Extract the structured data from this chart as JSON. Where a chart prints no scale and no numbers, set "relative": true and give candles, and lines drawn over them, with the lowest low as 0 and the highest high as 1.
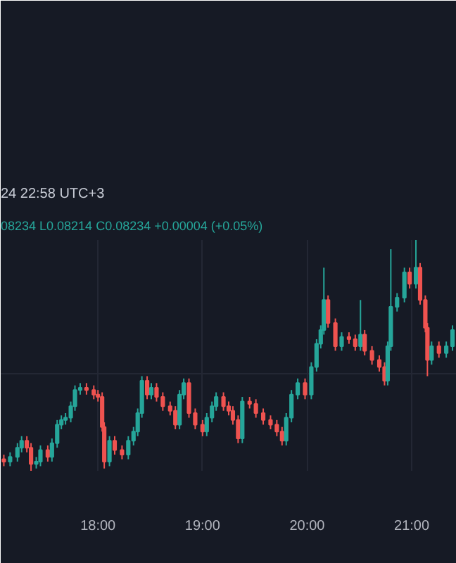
{
  "chart_data": {
    "type": "candlestick",
    "title": "24 22:58 UTC+3",
    "subtitle": "08234  L0.08214  C0.08234  +0.00004 (+0.05%)",
    "relative": true,
    "grid": true,
    "xlim": [
      17.07,
      21.43
    ],
    "xticks": [
      {
        "value": 18,
        "label": "18:00"
      },
      {
        "value": 19,
        "label": "19:00"
      },
      {
        "value": 20,
        "label": "20:00"
      },
      {
        "value": 21,
        "label": "21:00"
      }
    ],
    "x": [
      17.1,
      17.16,
      17.23,
      17.27,
      17.32,
      17.36,
      17.41,
      17.45,
      17.52,
      17.56,
      17.61,
      17.65,
      17.69,
      17.74,
      17.78,
      17.83,
      17.89,
      17.96,
      18.0,
      18.04,
      18.06,
      18.11,
      18.16,
      18.23,
      18.29,
      18.34,
      18.38,
      18.42,
      18.47,
      18.51,
      18.56,
      18.62,
      18.69,
      18.74,
      18.78,
      18.82,
      18.87,
      18.93,
      19.0,
      19.04,
      19.09,
      19.13,
      19.2,
      19.25,
      19.29,
      19.34,
      19.38,
      19.45,
      19.51,
      19.58,
      19.65,
      19.71,
      19.76,
      19.8,
      19.85,
      19.91,
      19.98,
      20.04,
      20.09,
      20.13,
      20.16,
      20.2,
      20.27,
      20.33,
      20.4,
      20.46,
      20.51,
      20.55,
      20.62,
      20.69,
      20.74,
      20.77,
      20.8,
      20.86,
      20.93,
      20.98,
      21.04,
      21.08,
      21.13,
      21.15,
      21.19,
      21.26,
      21.33,
      21.39
    ],
    "ohlc": [
      [
        0.05,
        0.07,
        0.02,
        0.04
      ],
      [
        0.04,
        0.08,
        0.02,
        0.06
      ],
      [
        0.06,
        0.12,
        0.04,
        0.1
      ],
      [
        0.1,
        0.15,
        0.08,
        0.13
      ],
      [
        0.13,
        0.15,
        0.08,
        0.1
      ],
      [
        0.1,
        0.12,
        0.0,
        0.03
      ],
      [
        0.03,
        0.06,
        0.01,
        0.04
      ],
      [
        0.04,
        0.11,
        0.02,
        0.09
      ],
      [
        0.09,
        0.11,
        0.04,
        0.06
      ],
      [
        0.06,
        0.14,
        0.04,
        0.12
      ],
      [
        0.12,
        0.22,
        0.1,
        0.2
      ],
      [
        0.2,
        0.24,
        0.18,
        0.22
      ],
      [
        0.22,
        0.25,
        0.2,
        0.23
      ],
      [
        0.23,
        0.3,
        0.21,
        0.28
      ],
      [
        0.28,
        0.37,
        0.26,
        0.35
      ],
      [
        0.35,
        0.38,
        0.33,
        0.36
      ],
      [
        0.36,
        0.38,
        0.33,
        0.35
      ],
      [
        0.35,
        0.37,
        0.31,
        0.33
      ],
      [
        0.33,
        0.35,
        0.3,
        0.32
      ],
      [
        0.32,
        0.34,
        0.17,
        0.19
      ],
      [
        0.19,
        0.21,
        0.01,
        0.04
      ],
      [
        0.04,
        0.15,
        0.02,
        0.13
      ],
      [
        0.13,
        0.15,
        0.07,
        0.09
      ],
      [
        0.09,
        0.11,
        0.05,
        0.07
      ],
      [
        0.07,
        0.15,
        0.05,
        0.13
      ],
      [
        0.13,
        0.19,
        0.11,
        0.17
      ],
      [
        0.17,
        0.27,
        0.15,
        0.25
      ],
      [
        0.25,
        0.41,
        0.23,
        0.39
      ],
      [
        0.39,
        0.41,
        0.31,
        0.33
      ],
      [
        0.33,
        0.38,
        0.31,
        0.36
      ],
      [
        0.36,
        0.38,
        0.3,
        0.32
      ],
      [
        0.32,
        0.34,
        0.26,
        0.28
      ],
      [
        0.28,
        0.3,
        0.24,
        0.26
      ],
      [
        0.26,
        0.28,
        0.18,
        0.2
      ],
      [
        0.2,
        0.35,
        0.18,
        0.33
      ],
      [
        0.33,
        0.4,
        0.31,
        0.38
      ],
      [
        0.38,
        0.4,
        0.23,
        0.25
      ],
      [
        0.25,
        0.27,
        0.18,
        0.2
      ],
      [
        0.2,
        0.22,
        0.15,
        0.17
      ],
      [
        0.17,
        0.25,
        0.15,
        0.23
      ],
      [
        0.23,
        0.3,
        0.21,
        0.28
      ],
      [
        0.28,
        0.34,
        0.26,
        0.32
      ],
      [
        0.32,
        0.34,
        0.26,
        0.28
      ],
      [
        0.28,
        0.3,
        0.24,
        0.26
      ],
      [
        0.26,
        0.28,
        0.2,
        0.22
      ],
      [
        0.22,
        0.24,
        0.12,
        0.14
      ],
      [
        0.14,
        0.32,
        0.12,
        0.3
      ],
      [
        0.3,
        0.32,
        0.27,
        0.29
      ],
      [
        0.29,
        0.31,
        0.23,
        0.25
      ],
      [
        0.25,
        0.27,
        0.2,
        0.22
      ],
      [
        0.22,
        0.24,
        0.18,
        0.2
      ],
      [
        0.2,
        0.22,
        0.15,
        0.17
      ],
      [
        0.17,
        0.19,
        0.11,
        0.13
      ],
      [
        0.13,
        0.25,
        0.11,
        0.23
      ],
      [
        0.23,
        0.35,
        0.21,
        0.33
      ],
      [
        0.33,
        0.4,
        0.31,
        0.38
      ],
      [
        0.38,
        0.4,
        0.31,
        0.33
      ],
      [
        0.33,
        0.47,
        0.31,
        0.45
      ],
      [
        0.45,
        0.57,
        0.43,
        0.55
      ],
      [
        0.55,
        0.63,
        0.53,
        0.61
      ],
      [
        0.61,
        0.88,
        0.59,
        0.74
      ],
      [
        0.74,
        0.76,
        0.62,
        0.64
      ],
      [
        0.64,
        0.66,
        0.52,
        0.54
      ],
      [
        0.54,
        0.6,
        0.52,
        0.58
      ],
      [
        0.58,
        0.6,
        0.55,
        0.57
      ],
      [
        0.57,
        0.59,
        0.52,
        0.54
      ],
      [
        0.54,
        0.74,
        0.52,
        0.59
      ],
      [
        0.59,
        0.61,
        0.5,
        0.52
      ],
      [
        0.52,
        0.54,
        0.46,
        0.48
      ],
      [
        0.48,
        0.5,
        0.43,
        0.45
      ],
      [
        0.45,
        0.47,
        0.37,
        0.39
      ],
      [
        0.39,
        0.56,
        0.37,
        0.54
      ],
      [
        0.54,
        0.96,
        0.52,
        0.71
      ],
      [
        0.71,
        0.77,
        0.69,
        0.75
      ],
      [
        0.75,
        0.88,
        0.73,
        0.86
      ],
      [
        0.86,
        0.88,
        0.79,
        0.81
      ],
      [
        0.81,
        1.0,
        0.79,
        0.88
      ],
      [
        0.88,
        0.9,
        0.72,
        0.74
      ],
      [
        0.74,
        0.76,
        0.6,
        0.62
      ],
      [
        0.62,
        0.64,
        0.41,
        0.48
      ],
      [
        0.48,
        0.56,
        0.46,
        0.54
      ],
      [
        0.54,
        0.56,
        0.49,
        0.51
      ],
      [
        0.51,
        0.56,
        0.49,
        0.54
      ],
      [
        0.54,
        0.63,
        0.52,
        0.61
      ]
    ],
    "colors": [
      "#ef5350",
      "#26a69a",
      "#26a69a",
      "#26a69a",
      "#ef5350",
      "#ef5350",
      "#26a69a",
      "#26a69a",
      "#ef5350",
      "#26a69a",
      "#26a69a",
      "#26a69a",
      "#26a69a",
      "#26a69a",
      "#26a69a",
      "#26a69a",
      "#ef5350",
      "#ef5350",
      "#ef5350",
      "#ef5350",
      "#ef5350",
      "#26a69a",
      "#ef5350",
      "#ef5350",
      "#26a69a",
      "#26a69a",
      "#26a69a",
      "#26a69a",
      "#ef5350",
      "#26a69a",
      "#ef5350",
      "#ef5350",
      "#ef5350",
      "#ef5350",
      "#26a69a",
      "#26a69a",
      "#ef5350",
      "#ef5350",
      "#ef5350",
      "#26a69a",
      "#26a69a",
      "#26a69a",
      "#ef5350",
      "#ef5350",
      "#ef5350",
      "#ef5350",
      "#26a69a",
      "#ef5350",
      "#ef5350",
      "#ef5350",
      "#ef5350",
      "#ef5350",
      "#ef5350",
      "#26a69a",
      "#26a69a",
      "#26a69a",
      "#ef5350",
      "#26a69a",
      "#26a69a",
      "#26a69a",
      "#26a69a",
      "#ef5350",
      "#ef5350",
      "#26a69a",
      "#ef5350",
      "#ef5350",
      "#26a69a",
      "#ef5350",
      "#ef5350",
      "#ef5350",
      "#ef5350",
      "#26a69a",
      "#26a69a",
      "#26a69a",
      "#26a69a",
      "#ef5350",
      "#26a69a",
      "#ef5350",
      "#ef5350",
      "#ef5350",
      "#26a69a",
      "#ef5350",
      "#26a69a",
      "#26a69a"
    ]
  }
}
